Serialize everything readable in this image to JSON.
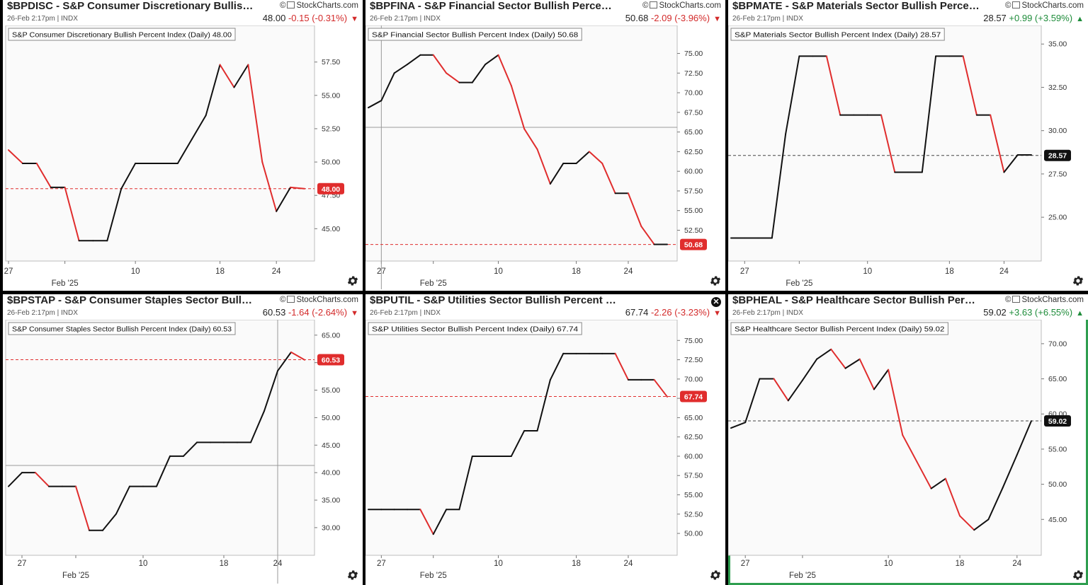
{
  "brand": "StockCharts.com",
  "copyright": "©",
  "colors": {
    "up": "#111111",
    "down": "#e02d2d",
    "badge_down": "#e02d2d",
    "badge_up": "#111111",
    "active_border": "#2e9e4f"
  },
  "panels": [
    {
      "id": "bpdisc",
      "title": "$BPDISC - S&P Consumer Discretionary Bullish P...",
      "subtitle": "26-Feb 2:17pm | INDX",
      "last": "48.00",
      "change": "-0.15 (-0.31%)",
      "direction": "down",
      "legend": "S&P Consumer Discretionary Bullish Percent Index (Daily) 48.00",
      "badge": "48.00",
      "badge_color": "down",
      "active": false,
      "show_close": false,
      "chart_data": {
        "type": "line",
        "y_ticks": [
          "45.00",
          "47.50",
          "50.00",
          "52.50",
          "55.00",
          "57.50"
        ],
        "ylim": [
          43.0,
          59.5
        ],
        "x_ticks": [
          {
            "label": "27",
            "i": 0
          },
          {
            "label": "10",
            "i": 9
          },
          {
            "label": "18",
            "i": 15
          },
          {
            "label": "24",
            "i": 19
          }
        ],
        "month_label": {
          "label": "Feb '25",
          "i": 4
        },
        "n": 22,
        "values": [
          50.9,
          49.9,
          49.9,
          48.1,
          48.1,
          44.1,
          44.1,
          44.1,
          48.0,
          49.9,
          49.9,
          49.9,
          49.9,
          51.7,
          53.5,
          57.3,
          55.6,
          57.3,
          50.0,
          46.3,
          48.1,
          48.0
        ],
        "last_value": 48.0,
        "crosshair": null
      }
    },
    {
      "id": "bpfina",
      "title": "$BPFINA - S&P Financial Sector Bullish Percent I...",
      "subtitle": "26-Feb 2:17pm | INDX",
      "last": "50.68",
      "change": "-2.09 (-3.96%)",
      "direction": "down",
      "legend": "S&P Financial Sector Bullish Percent Index (Daily) 50.68",
      "badge": "50.68",
      "badge_color": "down",
      "active": false,
      "show_close": false,
      "chart_data": {
        "type": "line",
        "y_ticks": [
          "52.50",
          "55.00",
          "57.50",
          "60.00",
          "62.50",
          "65.00",
          "67.50",
          "70.00",
          "72.50",
          "75.00"
        ],
        "ylim": [
          49.3,
          77.3
        ],
        "x_ticks": [
          {
            "label": "27",
            "i": 1
          },
          {
            "label": "10",
            "i": 10
          },
          {
            "label": "18",
            "i": 16
          },
          {
            "label": "24",
            "i": 20
          }
        ],
        "month_label": {
          "label": "Feb '25",
          "i": 5
        },
        "n": 24,
        "values": [
          68.1,
          69.0,
          72.5,
          73.6,
          74.8,
          74.8,
          72.5,
          71.3,
          71.3,
          73.6,
          74.8,
          70.9,
          65.4,
          62.8,
          58.4,
          61.0,
          61.0,
          62.5,
          61.0,
          57.2,
          57.2,
          53.0,
          50.7,
          50.7
        ],
        "last_value": 50.68,
        "crosshair": {
          "i": 1,
          "value": 65.6
        }
      }
    },
    {
      "id": "bpmate",
      "title": "$BPMATE - S&P Materials Sector Bullish Percent ...",
      "subtitle": "26-Feb 2:17pm | INDX",
      "last": "28.57",
      "change": "+0.99 (+3.59%)",
      "direction": "up",
      "legend": "S&P Materials Sector Bullish Percent Index (Daily) 28.57",
      "badge": "28.57",
      "badge_color": "up",
      "active": false,
      "show_close": false,
      "chart_data": {
        "type": "line",
        "y_ticks": [
          "25.00",
          "27.50",
          "30.00",
          "32.50",
          "35.00"
        ],
        "ylim": [
          22.8,
          35.5
        ],
        "x_ticks": [
          {
            "label": "27",
            "i": 1
          },
          {
            "label": "10",
            "i": 10
          },
          {
            "label": "18",
            "i": 16
          },
          {
            "label": "24",
            "i": 20
          }
        ],
        "month_label": {
          "label": "Feb '25",
          "i": 5
        },
        "n": 23,
        "values": [
          23.8,
          23.8,
          23.8,
          23.8,
          29.8,
          34.3,
          34.3,
          34.3,
          30.9,
          30.9,
          30.9,
          30.9,
          27.6,
          27.6,
          27.6,
          34.3,
          34.3,
          34.3,
          30.9,
          30.9,
          27.6,
          28.6,
          28.6
        ],
        "last_value": 28.57,
        "crosshair": null
      }
    },
    {
      "id": "bpstap",
      "title": "$BPSTAP - S&P Consumer Staples Sector Bullish ...",
      "subtitle": "26-Feb 2:17pm | INDX",
      "last": "60.53",
      "change": "-1.64 (-2.64%)",
      "direction": "down",
      "legend": "S&P Consumer Staples Sector Bullish Percent Index (Daily) 60.53",
      "badge": "60.53",
      "badge_color": "down",
      "active": false,
      "show_close": false,
      "chart_data": {
        "type": "line",
        "y_ticks": [
          "30.00",
          "35.00",
          "40.00",
          "45.00",
          "50.00",
          "55.00",
          "60.00",
          "65.00"
        ],
        "ylim": [
          26.0,
          66.0
        ],
        "x_ticks": [
          {
            "label": "27",
            "i": 1
          },
          {
            "label": "10",
            "i": 10
          },
          {
            "label": "18",
            "i": 16
          },
          {
            "label": "24",
            "i": 20
          }
        ],
        "month_label": {
          "label": "Feb '25",
          "i": 5
        },
        "n": 23,
        "values": [
          37.5,
          40.0,
          40.0,
          37.5,
          37.5,
          37.5,
          29.5,
          29.5,
          32.5,
          37.5,
          37.5,
          37.5,
          43.0,
          43.0,
          45.5,
          45.5,
          45.5,
          45.5,
          45.5,
          51.2,
          58.5,
          61.9,
          60.5
        ],
        "last_value": 60.53,
        "crosshair": {
          "i": 20,
          "value": 41.3
        }
      }
    },
    {
      "id": "bputil",
      "title": "$BPUTIL - S&P Utilities Sector Bullish Percent Ind...",
      "subtitle": "26-Feb 2:17pm | INDX",
      "last": "67.74",
      "change": "-2.26 (-3.23%)",
      "direction": "down",
      "legend": "S&P Utilities Sector Bullish Percent Index (Daily) 67.74",
      "badge": "67.74",
      "badge_color": "down",
      "active": false,
      "show_close": true,
      "chart_data": {
        "type": "line",
        "y_ticks": [
          "50.00",
          "52.50",
          "55.00",
          "57.50",
          "60.00",
          "62.50",
          "65.00",
          "67.50",
          "70.00",
          "72.50",
          "75.00"
        ],
        "ylim": [
          47.9,
          76.4
        ],
        "x_ticks": [
          {
            "label": "27",
            "i": 1
          },
          {
            "label": "10",
            "i": 10
          },
          {
            "label": "18",
            "i": 16
          },
          {
            "label": "24",
            "i": 20
          }
        ],
        "month_label": {
          "label": "Feb '25",
          "i": 5
        },
        "n": 24,
        "values": [
          53.1,
          53.1,
          53.1,
          53.1,
          53.1,
          49.9,
          53.1,
          53.1,
          60.0,
          60.0,
          60.0,
          60.0,
          63.3,
          63.3,
          69.9,
          73.3,
          73.3,
          73.3,
          73.3,
          73.3,
          69.9,
          69.9,
          69.9,
          67.7
        ],
        "last_value": 67.74,
        "crosshair": null
      }
    },
    {
      "id": "bpheal",
      "title": "$BPHEAL - S&P Healthcare Sector Bullish Percen...",
      "subtitle": "26-Feb 2:17pm | INDX",
      "last": "59.02",
      "change": "+3.63 (+6.55%)",
      "direction": "up",
      "legend": "S&P Healthcare Sector Bullish Percent Index (Daily) 59.02",
      "badge": "59.02",
      "badge_color": "up",
      "active": true,
      "show_close": false,
      "chart_data": {
        "type": "line",
        "y_ticks": [
          "45.00",
          "50.00",
          "55.00",
          "60.00",
          "65.00",
          "70.00"
        ],
        "ylim": [
          40.7,
          72.0
        ],
        "x_ticks": [
          {
            "label": "27",
            "i": 1
          },
          {
            "label": "10",
            "i": 11
          },
          {
            "label": "18",
            "i": 16
          },
          {
            "label": "24",
            "i": 20
          }
        ],
        "month_label": {
          "label": "Feb '25",
          "i": 5
        },
        "n": 22,
        "values": [
          58.0,
          58.8,
          65.0,
          65.0,
          61.9,
          64.8,
          67.8,
          69.2,
          66.5,
          67.8,
          63.5,
          66.3,
          57.0,
          53.2,
          49.4,
          50.8,
          45.5,
          43.5,
          45.0,
          49.5,
          54.2,
          59.0
        ],
        "last_value": 59.02,
        "crosshair": null
      }
    }
  ]
}
